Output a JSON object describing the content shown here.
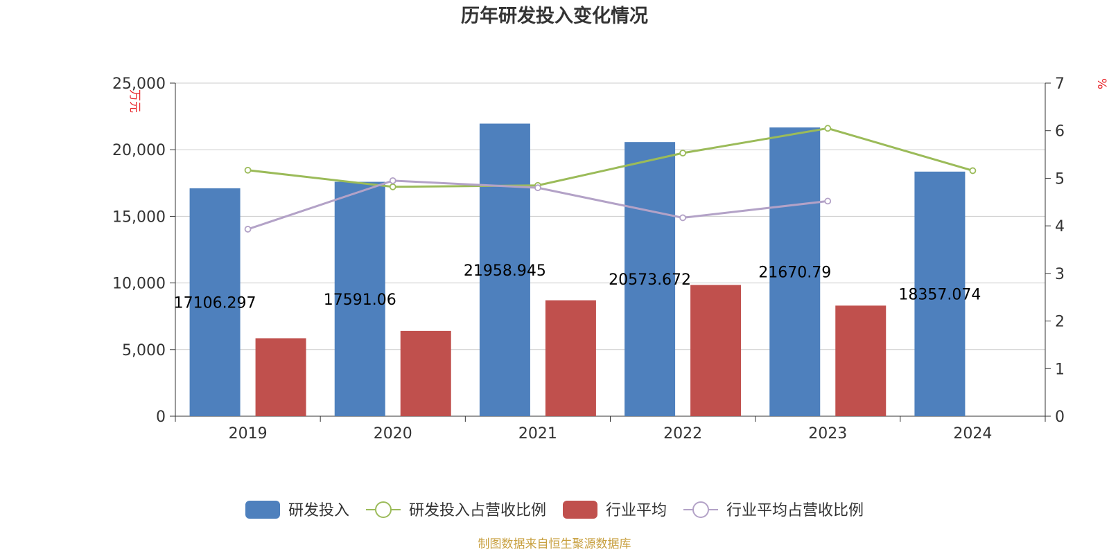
{
  "chart_data": {
    "type": "bar",
    "title": "历年研发投入变化情况",
    "categories": [
      "2019",
      "2020",
      "2021",
      "2022",
      "2023",
      "2024"
    ],
    "left_axis": {
      "unit": "万元",
      "ylim": [
        0,
        25000
      ],
      "ticks": [
        "0",
        "5,000",
        "10,000",
        "15,000",
        "20,000",
        "25,000"
      ],
      "tick_values": [
        0,
        5000,
        10000,
        15000,
        20000,
        25000
      ]
    },
    "right_axis": {
      "unit": "%",
      "ylim": [
        0,
        7
      ],
      "ticks": [
        "0",
        "1",
        "2",
        "3",
        "4",
        "5",
        "6",
        "7"
      ],
      "tick_values": [
        0,
        1,
        2,
        3,
        4,
        5,
        6,
        7
      ]
    },
    "series": [
      {
        "name": "研发投入",
        "kind": "bar",
        "axis": "left",
        "color": "#4e80bd",
        "values": [
          17106.297,
          17591.06,
          21958.945,
          20573.672,
          21670.79,
          18357.074
        ],
        "labels": [
          "17106.297",
          "17591.06",
          "21958.945",
          "20573.672",
          "21670.79",
          "18357.074"
        ]
      },
      {
        "name": "研发投入占营收比例",
        "kind": "line",
        "axis": "right",
        "color": "#9bbb59",
        "values": [
          5.17,
          4.82,
          4.85,
          5.53,
          6.05,
          5.16
        ]
      },
      {
        "name": "行业平均",
        "kind": "bar",
        "axis": "left",
        "color": "#c0504d",
        "values": [
          5850,
          6400,
          8700,
          9850,
          8300,
          null
        ]
      },
      {
        "name": "行业平均占营收比例",
        "kind": "line",
        "axis": "right",
        "color": "#b3a2c7",
        "values": [
          3.93,
          4.95,
          4.8,
          4.17,
          4.52,
          null
        ]
      }
    ],
    "grid": true,
    "legend_position": "bottom",
    "source": "制图数据来自恒生聚源数据库"
  }
}
